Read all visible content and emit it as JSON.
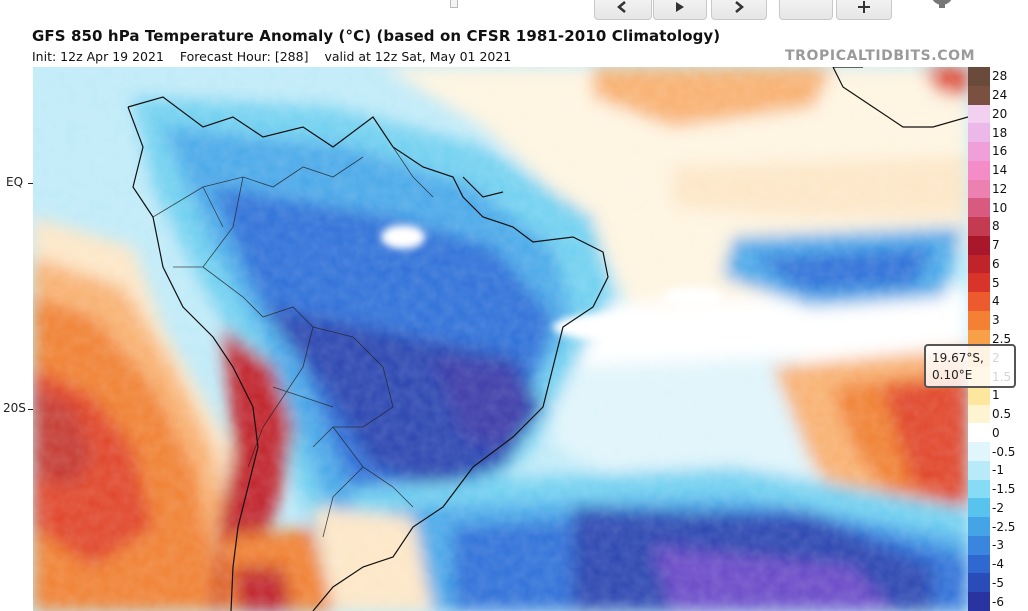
{
  "header": {
    "title": "GFS 850 hPa Temperature Anomaly (°C) (based on CFSR 1981-2010 Climatology)",
    "init": "Init: 12z Apr 19 2021",
    "forecast_hour": "Forecast Hour: [288]",
    "valid": "valid at 12z Sat, May 01 2021",
    "watermark": "TROPICALTIDBITS.COM"
  },
  "toolbar": {
    "buttons": [
      {
        "name": "first-frame-button",
        "icon": "first-frame-icon"
      },
      {
        "name": "play-button",
        "icon": "play-icon"
      },
      {
        "name": "next-frame-button",
        "icon": "next-frame-icon"
      },
      {
        "name": "blank-button",
        "icon": ""
      },
      {
        "name": "add-button",
        "icon": "plus-icon"
      }
    ],
    "settings_icon": "gear-icon",
    "document_icon": "document-icon"
  },
  "map": {
    "lat_labels": {
      "eq": "EQ",
      "s20": "20S"
    },
    "colors": {
      "deep_red": "#b8241a",
      "red": "#e0452a",
      "orange": "#f08030",
      "light_orange": "#f8b070",
      "pale": "#fde6c6",
      "white": "#ffffff",
      "pale_blue": "#bfeaf8",
      "cyan": "#6fd0f0",
      "light_blue": "#4aa8e8",
      "blue": "#2f6fd8",
      "dark_blue": "#2a44b0",
      "purple": "#6a4ac8"
    }
  },
  "colorbar": {
    "entries": [
      {
        "label": "28",
        "color": "#6a4a3a"
      },
      {
        "label": "24",
        "color": "#7a5040"
      },
      {
        "label": "20",
        "color": "#f2d0f0"
      },
      {
        "label": "18",
        "color": "#ecb8ea"
      },
      {
        "label": "16",
        "color": "#f0a0d8"
      },
      {
        "label": "14",
        "color": "#f48cc8"
      },
      {
        "label": "12",
        "color": "#ec80b0"
      },
      {
        "label": "10",
        "color": "#d85a80"
      },
      {
        "label": "8",
        "color": "#c43a50"
      },
      {
        "label": "7",
        "color": "#a8182a"
      },
      {
        "label": "6",
        "color": "#c0242a"
      },
      {
        "label": "5",
        "color": "#d8342a"
      },
      {
        "label": "4",
        "color": "#ec5a2e"
      },
      {
        "label": "3",
        "color": "#f48034"
      },
      {
        "label": "2.5",
        "color": "#f8a048"
      },
      {
        "label": "2",
        "color": "#fabc62"
      },
      {
        "label": "1.5",
        "color": "#fcd27e"
      },
      {
        "label": "1",
        "color": "#fde69e"
      },
      {
        "label": "0.5",
        "color": "#fef4d2"
      },
      {
        "label": "0",
        "color": "#ffffff"
      },
      {
        "label": "-0.5",
        "color": "#e0f6fc"
      },
      {
        "label": "-1",
        "color": "#b8eaf8"
      },
      {
        "label": "-1.5",
        "color": "#86dcf4"
      },
      {
        "label": "-2",
        "color": "#58c4ee"
      },
      {
        "label": "-2.5",
        "color": "#44a4e6"
      },
      {
        "label": "-3",
        "color": "#3a86de"
      },
      {
        "label": "-4",
        "color": "#3068d2"
      },
      {
        "label": "-5",
        "color": "#2a4cb8"
      },
      {
        "label": "-6",
        "color": "#2a34a0"
      }
    ]
  },
  "tooltip": {
    "lat": "19.67°S,",
    "lon": "0.10°E"
  }
}
